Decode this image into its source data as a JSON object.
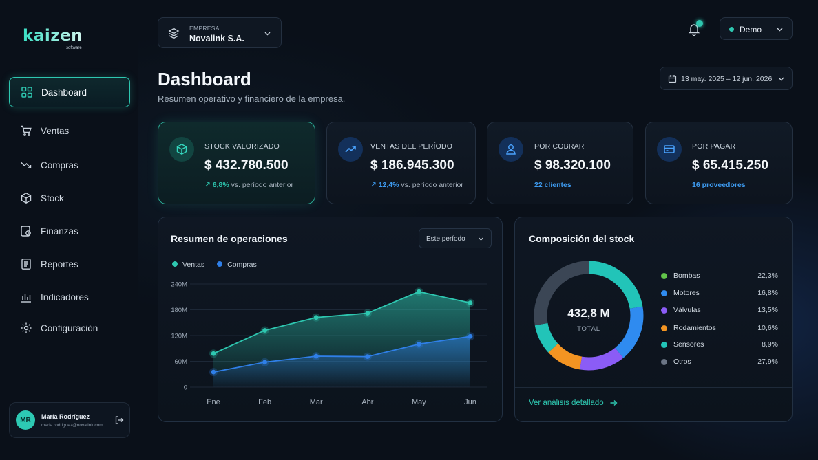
{
  "brand": {
    "name": "kaizen",
    "subtitle": "software"
  },
  "sidebar": {
    "items": [
      {
        "label": "Dashboard",
        "icon": "grid-icon",
        "active": true
      },
      {
        "label": "Ventas",
        "icon": "cart-icon"
      },
      {
        "label": "Compras",
        "icon": "trend-down-icon"
      },
      {
        "label": "Stock",
        "icon": "box-icon"
      },
      {
        "label": "Finanzas",
        "icon": "finance-icon"
      },
      {
        "label": "Reportes",
        "icon": "report-icon"
      },
      {
        "label": "Indicadores",
        "icon": "bar-chart-icon"
      },
      {
        "label": "Configuración",
        "icon": "gear-icon"
      }
    ]
  },
  "user": {
    "initials": "MR",
    "name": "María Rodríguez",
    "email": "maria.rodriguez@novalink.com"
  },
  "header": {
    "company_label": "EMPRESA",
    "company_name": "Novalink S.A.",
    "account": "Demo"
  },
  "page": {
    "title": "Dashboard",
    "subtitle": "Resumen operativo y financiero de la empresa.",
    "date_range": "13 may. 2025 – 12 jun. 2026"
  },
  "kpis": [
    {
      "label": "STOCK VALORIZADO",
      "value": "$ 432.780.500",
      "change": "6,8%",
      "suffix": "vs. período anterior"
    },
    {
      "label": "VENTAS DEL PERÍODO",
      "value": "$ 186.945.300",
      "change": "12,4%",
      "suffix": "vs. período anterior"
    },
    {
      "label": "POR COBRAR",
      "value": "$ 98.320.100",
      "footer": "22 clientes"
    },
    {
      "label": "POR PAGAR",
      "value": "$ 65.415.250",
      "footer": "16 proveedores"
    }
  ],
  "operations": {
    "title": "Resumen de operaciones",
    "period": "Este período",
    "legend": [
      "Ventas",
      "Compras"
    ]
  },
  "stock_composition": {
    "title": "Composición del stock",
    "total": "432,8 M",
    "total_label": "TOTAL",
    "link": "Ver análisis detallado"
  },
  "colors": {
    "accent": "#2ec7b0",
    "blue": "#2f7fe8",
    "bg": "#0a1019"
  },
  "chart_data": [
    {
      "type": "area",
      "title": "Resumen de operaciones",
      "categories": [
        "Ene",
        "Feb",
        "Mar",
        "Abr",
        "May",
        "Jun"
      ],
      "y_ticks": [
        "240M",
        "180M",
        "120M",
        "60M",
        "0"
      ],
      "ylim": [
        0,
        240
      ],
      "series": [
        {
          "name": "Ventas",
          "values": [
            78,
            132,
            162,
            172,
            222,
            196
          ],
          "color": "#2ec7b0"
        },
        {
          "name": "Compras",
          "values": [
            35,
            58,
            72,
            71,
            100,
            118
          ],
          "color": "#2f7fe8"
        }
      ],
      "grid": true,
      "legend": "top-left"
    },
    {
      "type": "pie",
      "title": "Composición del stock",
      "slices": [
        {
          "name": "Bombas",
          "value": 22.3,
          "label": "22,3%",
          "color": "#62c44a"
        },
        {
          "name": "Motores",
          "value": 16.8,
          "label": "16,8%",
          "color": "#2f8bf0"
        },
        {
          "name": "Válvulas",
          "value": 13.5,
          "label": "13,5%",
          "color": "#8b5cf6"
        },
        {
          "name": "Rodamientos",
          "value": 10.6,
          "label": "10,6%",
          "color": "#f39422"
        },
        {
          "name": "Sensores",
          "value": 8.9,
          "label": "8,9%",
          "color": "#22c4b8"
        },
        {
          "name": "Otros",
          "value": 27.9,
          "label": "27,9%",
          "color": "#6b7585"
        }
      ],
      "donut_segment_colors": [
        "#22c4b8",
        "#2f8bf0",
        "#8b5cf6",
        "#f39422",
        "#22c4b8",
        "#3b4655"
      ],
      "legend": "right"
    }
  ]
}
